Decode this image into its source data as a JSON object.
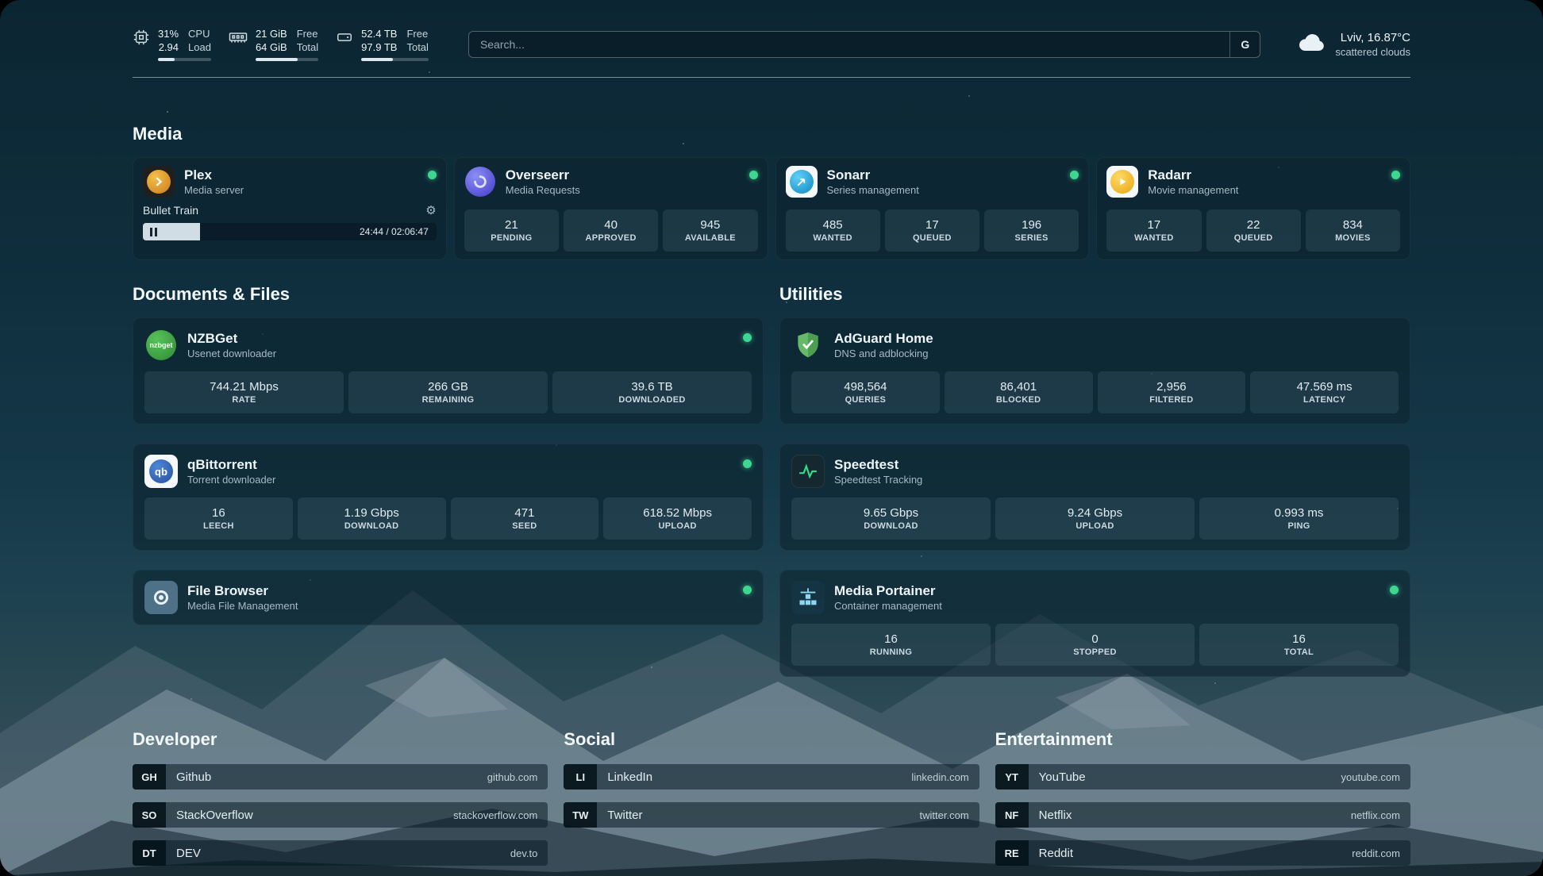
{
  "theme": {
    "status_green": "#3fd68f",
    "card_background": "#0c222e",
    "accent_plex": "#e5a00d",
    "accent_overseerr": "#4f46e5",
    "accent_sonarr": "#35b0e0",
    "accent_radarr": "#f0b429",
    "accent_nzbget": "#3da042",
    "accent_qbittorrent": "#2f67ba",
    "accent_adguard": "#5fb760",
    "accent_speedtest": "#34d98c",
    "accent_portainer": "#8fd6f2",
    "accent_filebrowser": "#4f7187"
  },
  "header": {
    "cpu": {
      "value_top": "31%",
      "value_bottom": "2.94",
      "label_top": "CPU",
      "label_bottom": "Load",
      "progress_percent": 31
    },
    "memory": {
      "value_top": "21 GiB",
      "value_bottom": "64 GiB",
      "label_top": "Free",
      "label_bottom": "Total",
      "progress_percent": 67
    },
    "storage": {
      "value_top": "52.4 TB",
      "value_bottom": "97.9 TB",
      "label_top": "Free",
      "label_bottom": "Total",
      "progress_percent": 47
    },
    "search": {
      "placeholder": "Search...",
      "engine_button": "G"
    },
    "weather": {
      "location": "Lviv, 16.87°C",
      "condition": "scattered clouds"
    }
  },
  "sections": {
    "media": {
      "title": "Media",
      "apps": [
        {
          "name": "Plex",
          "subtitle": "Media server",
          "status": "online",
          "player": {
            "title": "Bullet Train",
            "state": "paused",
            "time": "24:44 / 02:06:47",
            "progress_percent": 19.5
          }
        },
        {
          "name": "Overseerr",
          "subtitle": "Media Requests",
          "status": "online",
          "stats": [
            {
              "value": "21",
              "label": "PENDING"
            },
            {
              "value": "40",
              "label": "APPROVED"
            },
            {
              "value": "945",
              "label": "AVAILABLE"
            }
          ]
        },
        {
          "name": "Sonarr",
          "subtitle": "Series management",
          "status": "online",
          "stats": [
            {
              "value": "485",
              "label": "WANTED"
            },
            {
              "value": "17",
              "label": "QUEUED"
            },
            {
              "value": "196",
              "label": "SERIES"
            }
          ]
        },
        {
          "name": "Radarr",
          "subtitle": "Movie management",
          "status": "online",
          "stats": [
            {
              "value": "17",
              "label": "WANTED"
            },
            {
              "value": "22",
              "label": "QUEUED"
            },
            {
              "value": "834",
              "label": "MOVIES"
            }
          ]
        }
      ]
    },
    "documents": {
      "title": "Documents & Files",
      "apps": [
        {
          "name": "NZBGet",
          "subtitle": "Usenet downloader",
          "status": "online",
          "icon_text": "nzbget",
          "stats": [
            {
              "value": "744.21 Mbps",
              "label": "RATE"
            },
            {
              "value": "266 GB",
              "label": "REMAINING"
            },
            {
              "value": "39.6 TB",
              "label": "DOWNLOADED"
            }
          ]
        },
        {
          "name": "qBittorrent",
          "subtitle": "Torrent downloader",
          "status": "online",
          "icon_text": "qb",
          "stats": [
            {
              "value": "16",
              "label": "LEECH"
            },
            {
              "value": "1.19 Gbps",
              "label": "DOWNLOAD"
            },
            {
              "value": "471",
              "label": "SEED"
            },
            {
              "value": "618.52 Mbps",
              "label": "UPLOAD"
            }
          ]
        },
        {
          "name": "File Browser",
          "subtitle": "Media File Management",
          "status": "online",
          "stats": []
        }
      ]
    },
    "utilities": {
      "title": "Utilities",
      "apps": [
        {
          "name": "AdGuard Home",
          "subtitle": "DNS and adblocking",
          "stats": [
            {
              "value": "498,564",
              "label": "QUERIES"
            },
            {
              "value": "86,401",
              "label": "BLOCKED"
            },
            {
              "value": "2,956",
              "label": "FILTERED"
            },
            {
              "value": "47.569 ms",
              "label": "LATENCY"
            }
          ]
        },
        {
          "name": "Speedtest",
          "subtitle": "Speedtest Tracking",
          "stats": [
            {
              "value": "9.65 Gbps",
              "label": "DOWNLOAD"
            },
            {
              "value": "9.24 Gbps",
              "label": "UPLOAD"
            },
            {
              "value": "0.993 ms",
              "label": "PING"
            }
          ]
        },
        {
          "name": "Media Portainer",
          "subtitle": "Container management",
          "status": "online",
          "stats": [
            {
              "value": "16",
              "label": "RUNNING"
            },
            {
              "value": "0",
              "label": "STOPPED"
            },
            {
              "value": "16",
              "label": "TOTAL"
            }
          ]
        }
      ]
    },
    "developer": {
      "title": "Developer",
      "bookmarks": [
        {
          "abbr": "GH",
          "name": "Github",
          "url": "github.com"
        },
        {
          "abbr": "SO",
          "name": "StackOverflow",
          "url": "stackoverflow.com"
        },
        {
          "abbr": "DT",
          "name": "DEV",
          "url": "dev.to"
        }
      ]
    },
    "social": {
      "title": "Social",
      "bookmarks": [
        {
          "abbr": "LI",
          "name": "LinkedIn",
          "url": "linkedin.com"
        },
        {
          "abbr": "TW",
          "name": "Twitter",
          "url": "twitter.com"
        }
      ]
    },
    "entertainment": {
      "title": "Entertainment",
      "bookmarks": [
        {
          "abbr": "YT",
          "name": "YouTube",
          "url": "youtube.com"
        },
        {
          "abbr": "NF",
          "name": "Netflix",
          "url": "netflix.com"
        },
        {
          "abbr": "RE",
          "name": "Reddit",
          "url": "reddit.com"
        }
      ]
    }
  }
}
